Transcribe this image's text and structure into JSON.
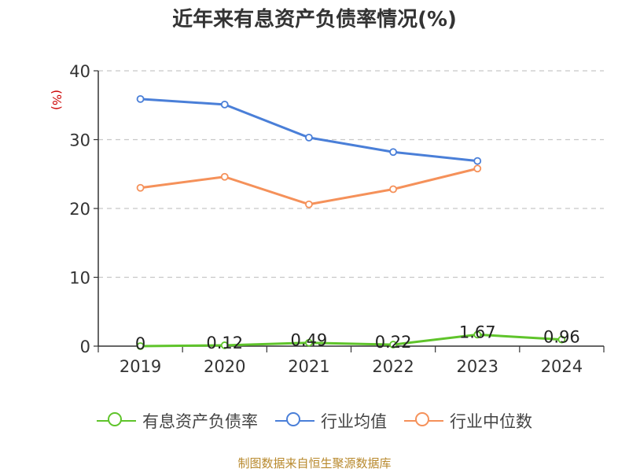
{
  "chart_data": {
    "type": "line",
    "title": "近年来有息资产负债率情况(%)",
    "ylabel": "(%)",
    "xlabel": "",
    "categories": [
      "2019",
      "2020",
      "2021",
      "2022",
      "2023",
      "2024"
    ],
    "ylim": [
      0,
      40
    ],
    "yticks": [
      0,
      10,
      20,
      30,
      40
    ],
    "grid": true,
    "legend_position": "bottom",
    "source": "制图数据来自恒生聚源数据库",
    "series": [
      {
        "name": "有息资产负债率",
        "color": "#5fc42b",
        "values": [
          0,
          0.12,
          0.49,
          0.22,
          1.67,
          0.96
        ],
        "labels": [
          "0",
          "0.12",
          "0.49",
          "0.22",
          "1.67",
          "0.96"
        ]
      },
      {
        "name": "行业均值",
        "color": "#4a7fd8",
        "values": [
          35.9,
          35.1,
          30.3,
          28.2,
          26.9,
          null
        ]
      },
      {
        "name": "行业中位数",
        "color": "#f5915a",
        "values": [
          23.0,
          24.6,
          20.6,
          22.8,
          25.8,
          null
        ]
      }
    ]
  }
}
